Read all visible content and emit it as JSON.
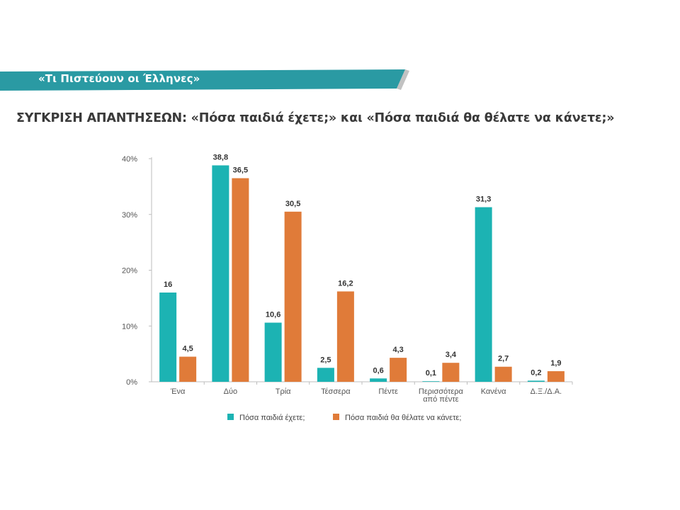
{
  "header": {
    "banner_text": "«Τι Πιστεύουν οι Έλληνες»",
    "banner_color": "#2a9aa3",
    "page_title": "ΣΥΓΚΡΙΣΗ ΑΠΑΝΤΗΣΕΩΝ: «Πόσα παιδιά έχετε;» και «Πόσα παιδιά θα θέλατε να κάνετε;»"
  },
  "chart_data": {
    "type": "bar",
    "title": "",
    "xlabel": "",
    "ylabel": "",
    "ylim": [
      0,
      40
    ],
    "yticks": [
      0,
      10,
      20,
      30,
      40
    ],
    "ytick_labels": [
      "0%",
      "10%",
      "20%",
      "30%",
      "40%"
    ],
    "grid": false,
    "legend_position": "bottom",
    "categories": [
      [
        "Ένα"
      ],
      [
        "Δύο"
      ],
      [
        "Τρία"
      ],
      [
        "Τέσσερα"
      ],
      [
        "Πέντε"
      ],
      [
        "Περισσότερα",
        "από πέντε"
      ],
      [
        "Κανένα"
      ],
      [
        "Δ.Ξ./Δ.Α."
      ]
    ],
    "series": [
      {
        "name": "Πόσα παιδιά έχετε;",
        "color": "#1cb3b3",
        "values": [
          16,
          38.8,
          10.6,
          2.5,
          0.6,
          0.1,
          31.3,
          0.2
        ],
        "labels": [
          "16",
          "38,8",
          "10,6",
          "2,5",
          "0,6",
          "0,1",
          "31,3",
          "0,2"
        ]
      },
      {
        "name": "Πόσα παιδιά θα θέλατε να κάνετε;",
        "color": "#e07b39",
        "values": [
          4.5,
          36.5,
          30.5,
          16.2,
          4.3,
          3.4,
          2.7,
          1.9
        ],
        "labels": [
          "4,5",
          "36,5",
          "30,5",
          "16,2",
          "4,3",
          "3,4",
          "2,7",
          "1,9"
        ]
      }
    ]
  }
}
